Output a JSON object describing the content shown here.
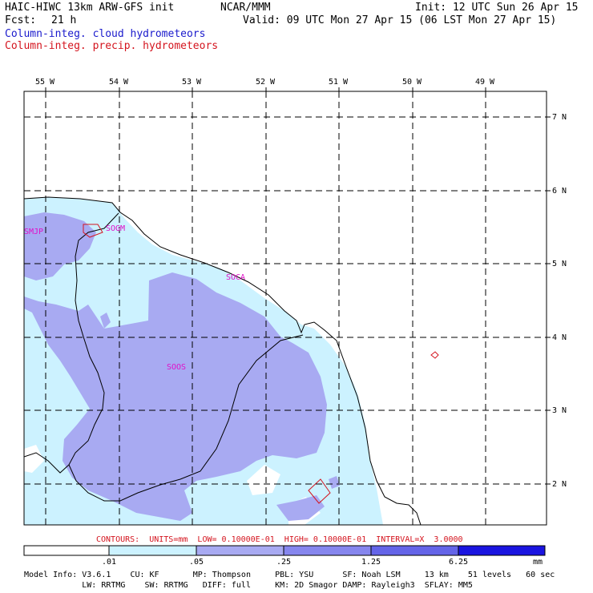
{
  "header": {
    "model": "HAIC-HIWC 13km ARW-GFS init",
    "org": "NCAR/MMM",
    "init": "Init: 12 UTC Sun 26 Apr 15",
    "fcst_label": "Fcst:",
    "fcst_value": "21 h",
    "valid": "Valid: 09 UTC Mon 27 Apr 15 (06 LST Mon 27 Apr 15)",
    "line_cloud": "Column-integ. cloud hydrometeors",
    "line_precip": "Column-integ. precip. hydrometeors"
  },
  "colors": {
    "cloud_text": "#1a1acc",
    "precip_text": "#d4141e",
    "station_text": "#e010c8",
    "fill_light": "#ccf2ff",
    "fill_mid": "#a8aaf2",
    "fill_dark": "#6464e8",
    "fill_darkest": "#1a14e0"
  },
  "map": {
    "lon_labels": [
      "55 W",
      "54 W",
      "53 W",
      "52 W",
      "51 W",
      "50 W",
      "49 W"
    ],
    "lat_labels": [
      "7 N",
      "6 N",
      "5 N",
      "4 N",
      "3 N",
      "2 N"
    ],
    "stations": [
      "SMJP",
      "SOGM",
      "SOCA",
      "SOOS"
    ]
  },
  "contours": "CONTOURS:  UNITS=mm  LOW= 0.10000E-01  HIGH= 0.10000E-01  INTERVAL=X  3.0000",
  "colorbar": {
    "labels": [
      ".01",
      ".05",
      ".25",
      "1.25",
      "6.25"
    ],
    "unit": "mm"
  },
  "footer": {
    "line1": "Model Info: V3.6.1    CU: KF       MP: Thompson     PBL: YSU      SF: Noah LSM     13 km    51 levels   60 sec",
    "line2": "            LW: RRTMG    SW: RRTMG   DIFF: full     KM: 2D Smagor DAMP: Rayleigh3  SFLAY: MM5"
  }
}
